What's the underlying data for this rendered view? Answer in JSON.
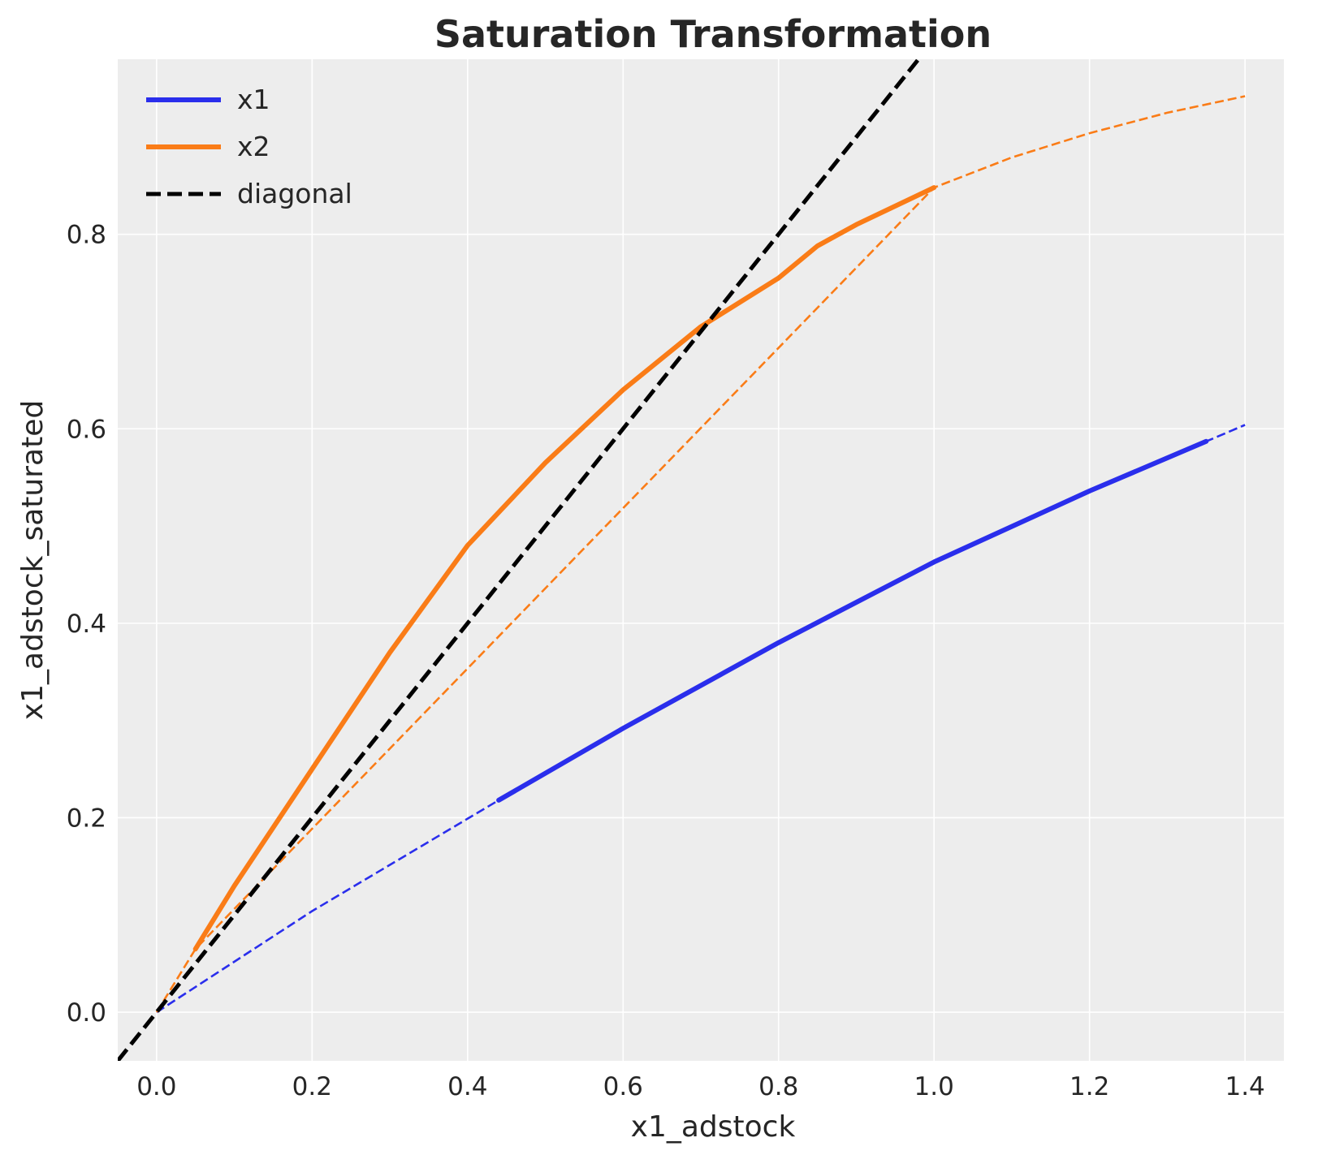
{
  "chart_data": {
    "type": "line",
    "title": "Saturation Transformation",
    "xlabel": "x1_adstock",
    "ylabel": "x1_adstock_saturated",
    "xlim": [
      -0.05,
      1.45
    ],
    "ylim": [
      -0.05,
      0.98
    ],
    "x_ticks": [
      "0.0",
      "0.2",
      "0.4",
      "0.6",
      "0.8",
      "1.0",
      "1.2",
      "1.4"
    ],
    "x_tick_values": [
      0.0,
      0.2,
      0.4,
      0.6,
      0.8,
      1.0,
      1.2,
      1.4
    ],
    "y_ticks": [
      "0.0",
      "0.2",
      "0.4",
      "0.6",
      "0.8"
    ],
    "y_tick_values": [
      0.0,
      0.2,
      0.4,
      0.6,
      0.8
    ],
    "grid": true,
    "legend_position": "top-left",
    "background_color": "#ededed",
    "series": [
      {
        "name": "x1",
        "color": "#2a2eec",
        "solid": [
          [
            0.44,
            0.218
          ],
          [
            0.6,
            0.292
          ],
          [
            0.8,
            0.38
          ],
          [
            1.0,
            0.463
          ],
          [
            1.2,
            0.536
          ],
          [
            1.35,
            0.587
          ]
        ],
        "dashed": [
          [
            0.0,
            0.0
          ],
          [
            0.2,
            0.104
          ],
          [
            0.44,
            0.218
          ],
          [
            0.6,
            0.292
          ],
          [
            0.8,
            0.38
          ],
          [
            1.0,
            0.463
          ],
          [
            1.2,
            0.536
          ],
          [
            1.4,
            0.604
          ]
        ]
      },
      {
        "name": "x2",
        "color": "#fa7c17",
        "solid": [
          [
            0.05,
            0.065
          ],
          [
            0.1,
            0.13
          ],
          [
            0.2,
            0.25
          ],
          [
            0.3,
            0.37
          ],
          [
            0.4,
            0.48
          ],
          [
            0.5,
            0.565
          ],
          [
            0.6,
            0.64
          ],
          [
            0.7,
            0.705
          ],
          [
            0.8,
            0.755
          ],
          [
            0.85,
            0.788
          ],
          [
            0.9,
            0.81
          ],
          [
            1.0,
            0.848
          ]
        ],
        "dashed": [
          [
            0.0,
            0.0
          ],
          [
            0.05,
            0.065
          ],
          [
            1.0,
            0.848
          ],
          [
            1.1,
            0.879
          ],
          [
            1.2,
            0.904
          ],
          [
            1.3,
            0.925
          ],
          [
            1.4,
            0.942
          ]
        ]
      },
      {
        "name": "diagonal",
        "color": "#000000",
        "dashed": [
          [
            -0.05,
            -0.05
          ],
          [
            1.0,
            1.0
          ]
        ]
      }
    ]
  }
}
